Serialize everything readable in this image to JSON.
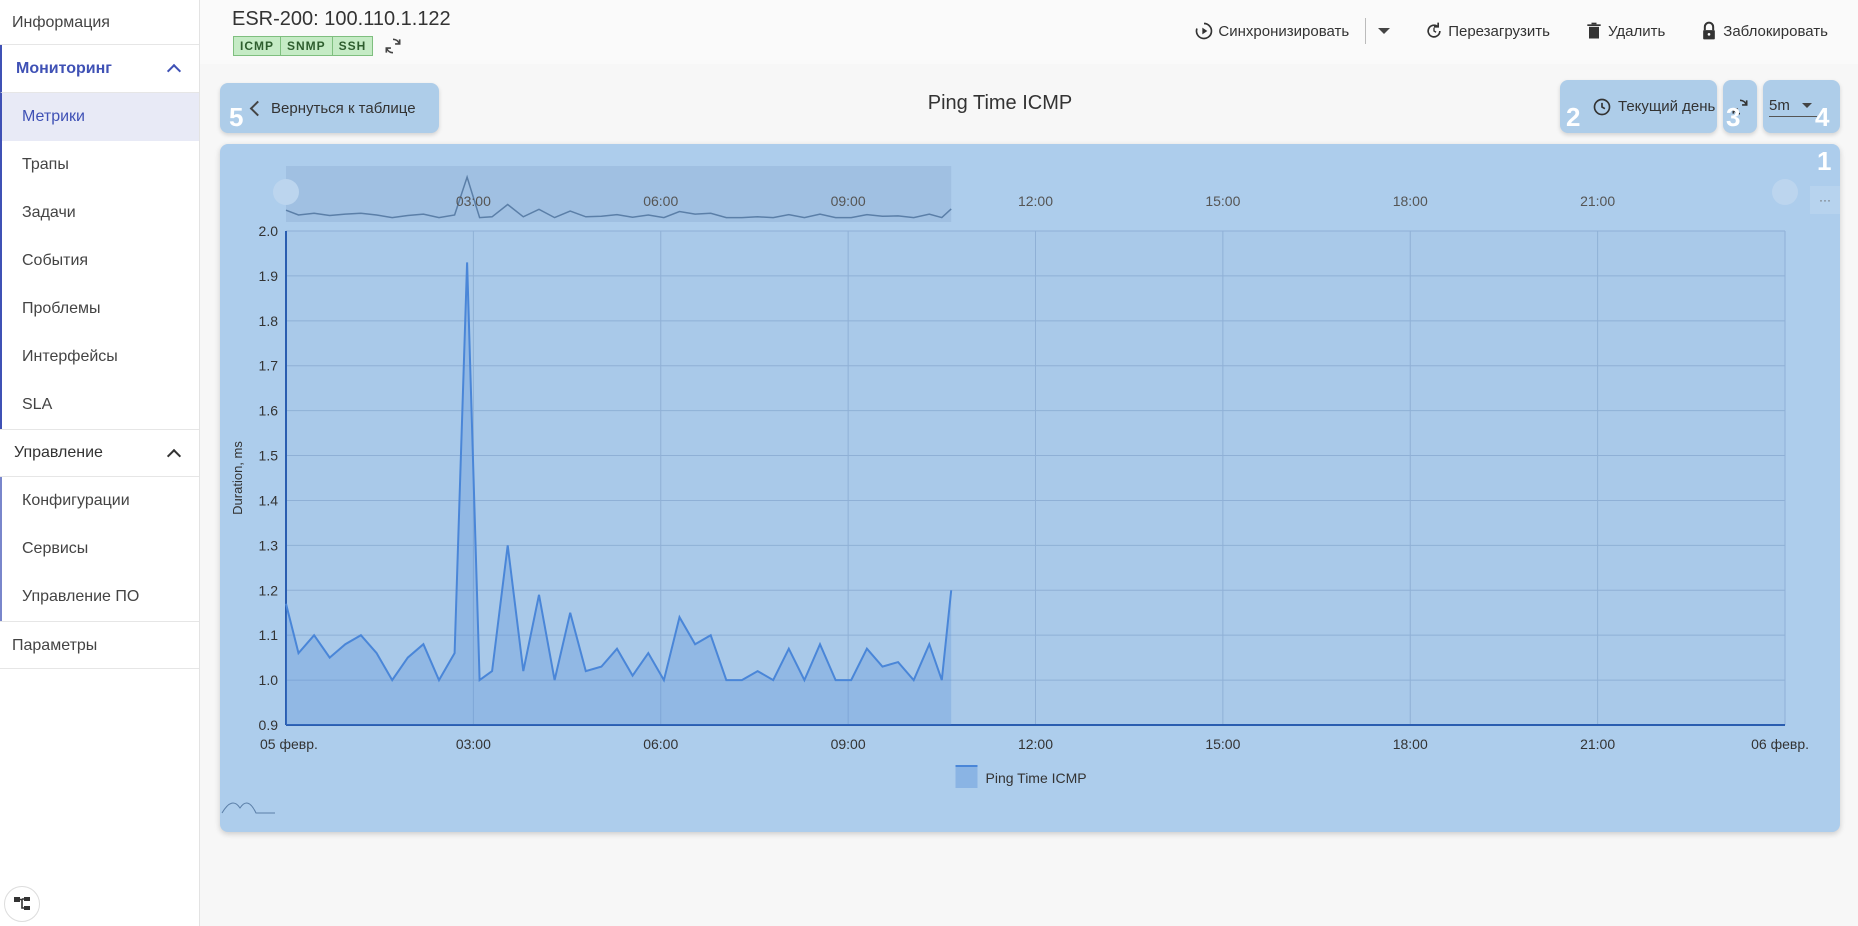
{
  "sidebar": {
    "info": "Информация",
    "monitoring": {
      "label": "Мониторинг",
      "items": [
        "Метрики",
        "Трапы",
        "Задачи",
        "События",
        "Проблемы",
        "Интерфейсы",
        "SLA"
      ]
    },
    "management": {
      "label": "Управление",
      "items": [
        "Конфигурации",
        "Сервисы",
        "Управление ПО"
      ]
    },
    "params": "Параметры"
  },
  "header": {
    "device_title": "ESR-200: 100.110.1.122",
    "tags": [
      "ICMP",
      "SNMP",
      "SSH"
    ],
    "actions": {
      "sync": "Синхронизировать",
      "reboot": "Перезагрузить",
      "delete": "Удалить",
      "lock": "Заблокировать"
    }
  },
  "toolbar": {
    "back": "Вернуться к таблице",
    "title": "Ping Time ICMP",
    "range": "Текущий день",
    "interval": "5m",
    "markers": [
      "1",
      "2",
      "3",
      "4",
      "5"
    ]
  },
  "colors": {
    "accent": "#3f51b5",
    "series": "#4a86d8",
    "panel": "#adcdec"
  },
  "chart_data": {
    "type": "area",
    "title": "Ping Time ICMP",
    "xlabel": "",
    "ylabel": "Duration, ms",
    "x_ticks": [
      "05 февр.",
      "03:00",
      "06:00",
      "09:00",
      "12:00",
      "15:00",
      "18:00",
      "21:00",
      "06 февр."
    ],
    "navigator_ticks": [
      "03:00",
      "06:00",
      "09:00",
      "12:00",
      "15:00",
      "18:00",
      "21:00"
    ],
    "y_ticks": [
      "0.9",
      "1.0",
      "1.1",
      "1.2",
      "1.3",
      "1.4",
      "1.5",
      "1.6",
      "1.7",
      "1.8",
      "1.9",
      "2.0"
    ],
    "ylim": [
      0.9,
      2.0
    ],
    "xlim_hours": [
      0,
      24
    ],
    "grid": true,
    "legend": "bottom-center",
    "series": [
      {
        "name": "Ping Time ICMP",
        "x_hours": [
          0.0,
          0.2,
          0.45,
          0.7,
          0.95,
          1.2,
          1.45,
          1.7,
          1.95,
          2.2,
          2.45,
          2.7,
          2.9,
          3.1,
          3.3,
          3.55,
          3.8,
          4.05,
          4.3,
          4.55,
          4.8,
          5.05,
          5.3,
          5.55,
          5.8,
          6.05,
          6.3,
          6.55,
          6.8,
          7.05,
          7.3,
          7.55,
          7.8,
          8.05,
          8.3,
          8.55,
          8.8,
          9.05,
          9.3,
          9.55,
          9.8,
          10.05,
          10.3,
          10.5,
          10.65
        ],
        "values": [
          1.17,
          1.06,
          1.1,
          1.05,
          1.08,
          1.1,
          1.06,
          1.0,
          1.05,
          1.08,
          1.0,
          1.06,
          1.93,
          1.0,
          1.02,
          1.3,
          1.02,
          1.19,
          1.0,
          1.15,
          1.02,
          1.03,
          1.07,
          1.01,
          1.06,
          1.0,
          1.14,
          1.08,
          1.1,
          1.0,
          1.0,
          1.02,
          1.0,
          1.07,
          1.0,
          1.08,
          1.0,
          1.0,
          1.07,
          1.03,
          1.04,
          1.0,
          1.08,
          1.0,
          1.2
        ]
      }
    ]
  }
}
